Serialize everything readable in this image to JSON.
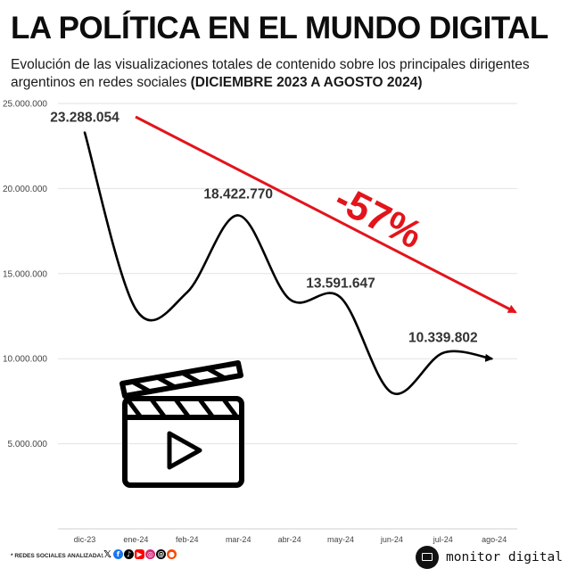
{
  "title": "LA POLÍTICA EN EL MUNDO DIGITAL",
  "subtitle_plain": "Evolución de las visualizaciones totales de contenido sobre los principales dirigentes argentinos en redes sociales",
  "subtitle_bold": "(DICIEMBRE 2023 A AGOSTO 2024)",
  "change_label": "-57%",
  "footnote": "* REDES SOCIALES ANALIZADAS",
  "social_icons": [
    "x-icon",
    "facebook-icon",
    "tiktok-icon",
    "youtube-icon",
    "instagram-icon",
    "threads-icon",
    "reddit-icon"
  ],
  "brand": "monitor digital",
  "colors": {
    "line": "#000000",
    "trend_arrow": "#e3141b",
    "grid": "#e2e2e2"
  },
  "chart_data": {
    "type": "line",
    "categories": [
      "dic-23",
      "ene-24",
      "feb-24",
      "mar-24",
      "abr-24",
      "may-24",
      "jun-24",
      "jul-24",
      "ago-24"
    ],
    "values": [
      23288054,
      12900000,
      13900000,
      18422770,
      13500000,
      13591647,
      8000000,
      10339802,
      10000000
    ],
    "data_labels": [
      {
        "category": "dic-23",
        "text": "23.288.054"
      },
      {
        "category": "mar-24",
        "text": "18.422.770"
      },
      {
        "category": "may-24",
        "text": "13.591.647"
      },
      {
        "category": "jul-24",
        "text": "10.339.802"
      }
    ],
    "yticks": [
      {
        "value": 5000000,
        "label": "5.000.000"
      },
      {
        "value": 10000000,
        "label": "10.000.000"
      },
      {
        "value": 15000000,
        "label": "15.000.000"
      },
      {
        "value": 20000000,
        "label": "20.000.000"
      },
      {
        "value": 25000000,
        "label": "25.000.000"
      }
    ],
    "ylim": [
      0,
      25000000
    ],
    "grid": true,
    "trend_annotation": "-57%"
  }
}
